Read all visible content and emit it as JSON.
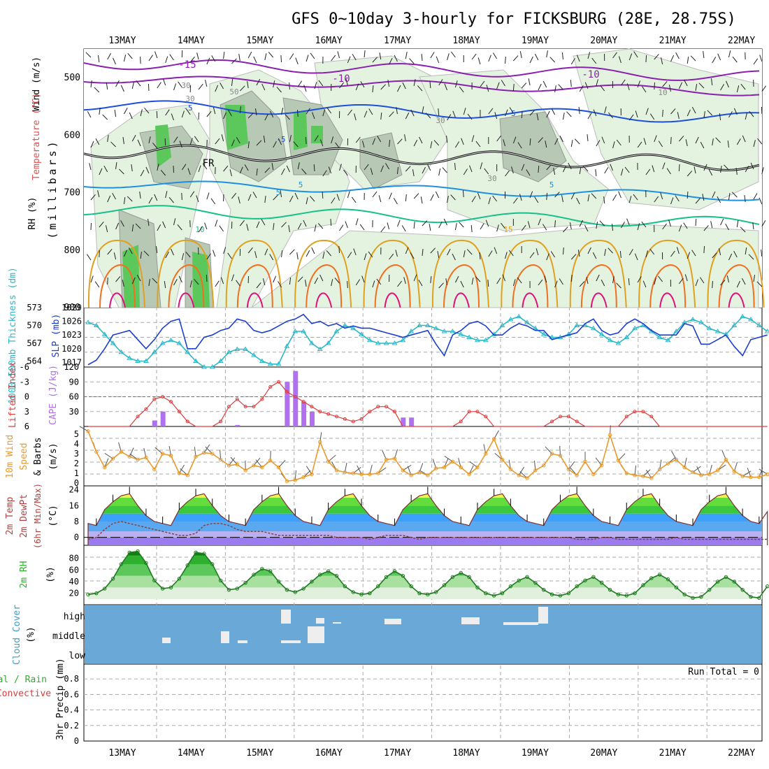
{
  "title": "GFS 0~10day 3-hourly for FICKSBURG (28E, 28.75S)",
  "dates": [
    "13MAY",
    "14MAY",
    "15MAY",
    "16MAY",
    "17MAY",
    "18MAY",
    "19MAY",
    "20MAY",
    "21MAY",
    "22MAY"
  ],
  "run_total": "Run Total = 0",
  "colors": {
    "temp_neg15": "#8a1fb0",
    "temp_neg10": "#8a1fb0",
    "temp_neg5": "#1f4fd8",
    "temp_0": "#000000",
    "temp_5": "#1e90e0",
    "temp_10": "#16c08a",
    "temp_15": "#e0a020",
    "temp_20": "#f07020",
    "temp_25": "#e0107a",
    "slp": "#1c3fcf",
    "thickness": "#2ab8c8",
    "lifted": "#e03c3c",
    "cape": "#b070f0",
    "wind": "#e89a2c",
    "rh_fill": "#3cc83c",
    "cloud_bg": "#6aa8d8",
    "precip_grid": "#aaaaaa"
  },
  "panels": {
    "upper": {
      "ylabel_wind": "Wind (m/s)",
      "ylabel_temp": "Temperature (°C)",
      "ylabel_rh": "RH (%)",
      "ylabel_mb": "(millibars)",
      "ticks": [
        "500",
        "600",
        "700",
        "800",
        "900"
      ],
      "labels": [
        "-15",
        "-10",
        "-10",
        "-5",
        "-5",
        "-5",
        "5",
        "5",
        "5",
        "10",
        "15",
        "FR",
        "30",
        "30",
        "30",
        "30",
        "50",
        "10"
      ]
    },
    "slp": {
      "ylabel_thick": "1000-500mb Thickness (dm)",
      "ylabel_slp": "SLP (mb)",
      "left_ticks": [
        "573",
        "570",
        "567",
        "564"
      ],
      "right_ticks": [
        "1029",
        "1026",
        "1023",
        "1020",
        "1017"
      ]
    },
    "cape": {
      "ylabel_li": "Lifted Index",
      "ylabel_cape": "CAPE (J/kg)",
      "left_ticks": [
        "-6",
        "-3",
        "0",
        "3",
        "6"
      ],
      "right_ticks": [
        "120",
        "90",
        "60",
        "30"
      ]
    },
    "wind": {
      "ylabel_a": "10m Wind",
      "ylabel_b": "Speed",
      "ylabel_c": "& Barbs",
      "ylabel_d": "(m/s)",
      "ticks": [
        "5",
        "4",
        "3",
        "2",
        "1",
        "0"
      ]
    },
    "temp": {
      "ylabel_a": "2m Temp",
      "ylabel_b": "2m DewPt",
      "ylabel_c": "(6hr Min/Max)",
      "ylabel_d": "(°C)",
      "ticks": [
        "24",
        "16",
        "8",
        "0"
      ]
    },
    "rh": {
      "ylabel_a": "2m RH",
      "ylabel_b": "(%)",
      "ticks": [
        "80",
        "60",
        "40",
        "20"
      ]
    },
    "cloud": {
      "ylabel_a": "Cloud Cover",
      "ylabel_b": "(%)",
      "ticks": [
        "high",
        "middle",
        "low"
      ]
    },
    "precip": {
      "ylabel_a": "Total / Rain",
      "ylabel_b": "Convective",
      "ylabel_c": "3hr Precip (mm)",
      "ticks": [
        "0.8",
        "0.6",
        "0.4",
        "0.2",
        "0"
      ]
    }
  },
  "chart_data": [
    {
      "type": "line",
      "name": "sea level pressure and thickness",
      "x_unit": "3-hourly steps",
      "series": [
        {
          "name": "SLP (mb)",
          "values": [
            1016.5,
            1017.5,
            1020,
            1023,
            1023.5,
            1024,
            1022,
            1020,
            1022,
            1024.5,
            1026,
            1026.5,
            1020,
            1020,
            1022.5,
            1023,
            1024,
            1024.5,
            1026.5,
            1026,
            1024,
            1023.5,
            1024,
            1025,
            1026,
            1026.5,
            1027.5,
            1025.5,
            1026,
            1025,
            1025.5,
            1024.5,
            1025,
            1024.5,
            1024.5,
            1024,
            1023.5,
            1023,
            1022.5,
            1023,
            1023.5,
            1024,
            1021,
            1018.5,
            1023,
            1024,
            1025.5,
            1026,
            1025,
            1023,
            1023,
            1024.5,
            1025.5,
            1025,
            1024,
            1024,
            1022,
            1022.5,
            1023,
            1023.5,
            1025.5,
            1026.5,
            1024,
            1023,
            1023.5,
            1025.5,
            1026.5,
            1025.5,
            1024,
            1023,
            1023,
            1023,
            1025.5,
            1025,
            1021,
            1021,
            1022,
            1023,
            1020.5,
            1018.5,
            1022,
            1022.5,
            1023
          ]
        },
        {
          "name": "Thickness (dm)",
          "values": [
            570.5,
            570,
            568.5,
            567,
            565.5,
            564.5,
            564,
            564,
            565.5,
            567,
            567.5,
            567,
            565.5,
            564,
            563,
            563,
            564,
            565.5,
            566,
            566,
            565,
            564,
            563.5,
            563.5,
            566.5,
            569,
            569,
            567,
            566,
            567,
            569,
            570,
            569.5,
            568.5,
            567.5,
            567,
            567,
            567,
            567.5,
            569,
            570,
            570,
            569.5,
            569,
            569,
            568.5,
            568,
            567.5,
            567.5,
            568.5,
            570,
            571,
            571.5,
            570.5,
            569.5,
            568.5,
            568,
            568,
            568.5,
            570,
            570,
            569.5,
            568.5,
            567.5,
            567,
            568,
            569.5,
            570,
            569,
            568,
            567.5,
            569,
            570.5,
            571,
            570.5,
            569.5,
            569,
            568.5,
            570,
            571.5,
            571,
            570,
            569
          ]
        }
      ],
      "left_ylim": [
        563,
        573
      ],
      "right_ylim": [
        1016,
        1029
      ]
    },
    {
      "type": "bar",
      "name": "CAPE and Lifted Index",
      "series": [
        {
          "name": "CAPE (J/kg)",
          "values": [
            0,
            0,
            0,
            0,
            0,
            0,
            0,
            0,
            12,
            30,
            0,
            0,
            0,
            0,
            0,
            0,
            0,
            0,
            3,
            0,
            0,
            0,
            0,
            0,
            90,
            112,
            50,
            30,
            0,
            0,
            0,
            0,
            0,
            0,
            0,
            0,
            0,
            0,
            18,
            18,
            0,
            0,
            0,
            0,
            0,
            0,
            0,
            0,
            0,
            0,
            0,
            0,
            0,
            0,
            0,
            0,
            0,
            0,
            0,
            0,
            0,
            0,
            0,
            0,
            0,
            0,
            0,
            0,
            0,
            0,
            0,
            0,
            0,
            0,
            0,
            0,
            0,
            0,
            0,
            0,
            0,
            0,
            0
          ]
        },
        {
          "name": "Lifted Index",
          "values": [
            6,
            6.5,
            7,
            7,
            6,
            6,
            4,
            2.5,
            0.5,
            0,
            1,
            3,
            5,
            6,
            6,
            6,
            5,
            2,
            0.5,
            2,
            2,
            0.5,
            -2,
            -3,
            -1,
            0,
            1,
            2,
            3,
            3.5,
            4,
            4.5,
            5,
            4.5,
            3,
            2,
            2,
            3,
            6,
            7,
            7,
            7,
            7,
            7,
            7,
            5,
            3,
            3,
            4,
            6,
            7,
            7,
            7,
            7,
            7,
            7,
            5,
            4,
            4,
            5,
            7,
            7,
            7,
            7,
            6,
            4,
            3,
            3,
            4,
            6,
            7,
            7,
            7,
            7,
            7,
            7,
            6.5,
            6,
            6,
            7,
            7,
            7,
            7
          ]
        }
      ],
      "left_ylim": [
        6,
        -6
      ],
      "right_ylim": [
        0,
        120
      ]
    },
    {
      "type": "line",
      "name": "10m wind speed",
      "series": [
        {
          "name": "Wind speed (m/s)",
          "values": [
            5.3,
            3.2,
            1.6,
            2.5,
            3.2,
            2.7,
            2.4,
            2.6,
            1.4,
            3,
            2.8,
            1,
            0.8,
            2.7,
            3.1,
            3,
            2.4,
            1.8,
            1.9,
            1.3,
            1.8,
            1.6,
            2.3,
            1.6,
            0.2,
            0.3,
            0.6,
            0.9,
            4.2,
            2.2,
            1.3,
            1.1,
            1,
            0.9,
            0.9,
            1,
            2.4,
            2.5,
            1.3,
            0.8,
            1.1,
            0.8,
            1.5,
            1.6,
            2.2,
            1.6,
            0.9,
            1.6,
            3,
            4.5,
            2.4,
            1.4,
            0.8,
            0.5,
            1.3,
            1.8,
            3,
            2.8,
            1.4,
            0.8,
            2.2,
            0.9,
            1.8,
            4.9,
            2.3,
            1,
            0.8,
            0.7,
            0.5,
            1.4,
            2,
            2.4,
            1.6,
            1.1,
            0.8,
            0.9,
            1.3,
            2.4,
            1.2,
            0.7,
            0.6,
            0.6,
            0.9
          ]
        }
      ],
      "ylim": [
        0,
        5.5
      ]
    },
    {
      "type": "area",
      "name": "2m temperature and dewpoint",
      "series": [
        {
          "name": "2m Temp (°C)",
          "values": [
            7,
            6,
            14,
            18,
            21,
            22,
            16,
            11,
            8,
            7,
            6,
            14,
            18,
            21,
            22,
            16,
            11,
            8,
            7,
            6,
            14,
            18,
            21,
            22,
            16,
            11,
            8,
            7,
            6,
            14,
            18,
            21,
            22,
            16,
            11,
            8,
            7,
            6,
            14,
            18,
            21,
            22,
            16,
            11,
            8,
            7,
            6,
            14,
            18,
            21,
            22,
            16,
            11,
            8,
            7,
            6,
            14,
            18,
            21,
            22,
            16,
            11,
            8,
            7,
            6,
            14,
            18,
            21,
            22,
            16,
            11,
            8,
            7,
            6,
            14,
            18,
            21,
            22,
            16,
            11,
            8,
            7,
            13
          ]
        },
        {
          "name": "2m DewPt (°C)",
          "values": [
            -1,
            0,
            4,
            7,
            8,
            7,
            6,
            5,
            4,
            3,
            2,
            1,
            1,
            2,
            6,
            7,
            7,
            6,
            4,
            3,
            3,
            3,
            2,
            1,
            1,
            1,
            1,
            1,
            1,
            1,
            0,
            0,
            0,
            0,
            -1,
            0,
            1,
            1,
            1,
            0,
            -1,
            0,
            0,
            0,
            0,
            0,
            0,
            0,
            0,
            0,
            0,
            0,
            0,
            0,
            0,
            0,
            0,
            0,
            0,
            -1,
            -1,
            -1,
            0,
            0,
            -1,
            -1,
            -1,
            -1,
            -1,
            -1,
            -1,
            0,
            -1,
            -1,
            -1,
            -1,
            -1,
            -1,
            -1,
            -1,
            -1,
            -1,
            -1
          ]
        }
      ],
      "ylim": [
        -4,
        26
      ]
    },
    {
      "type": "area",
      "name": "2m relative humidity",
      "series": [
        {
          "name": "2m RH (%)",
          "values": [
            18,
            20,
            28,
            45,
            70,
            90,
            92,
            72,
            42,
            28,
            30,
            45,
            68,
            90,
            88,
            70,
            42,
            26,
            28,
            38,
            52,
            62,
            58,
            40,
            26,
            22,
            28,
            40,
            52,
            58,
            50,
            32,
            22,
            18,
            20,
            32,
            48,
            58,
            50,
            32,
            20,
            18,
            22,
            34,
            48,
            55,
            48,
            30,
            20,
            16,
            20,
            32,
            42,
            48,
            38,
            26,
            18,
            16,
            20,
            32,
            42,
            48,
            38,
            26,
            18,
            16,
            20,
            34,
            46,
            52,
            44,
            30,
            18,
            12,
            14,
            26,
            40,
            48,
            40,
            26,
            14,
            12,
            32
          ]
        }
      ],
      "ylim": [
        10,
        100
      ]
    }
  ]
}
